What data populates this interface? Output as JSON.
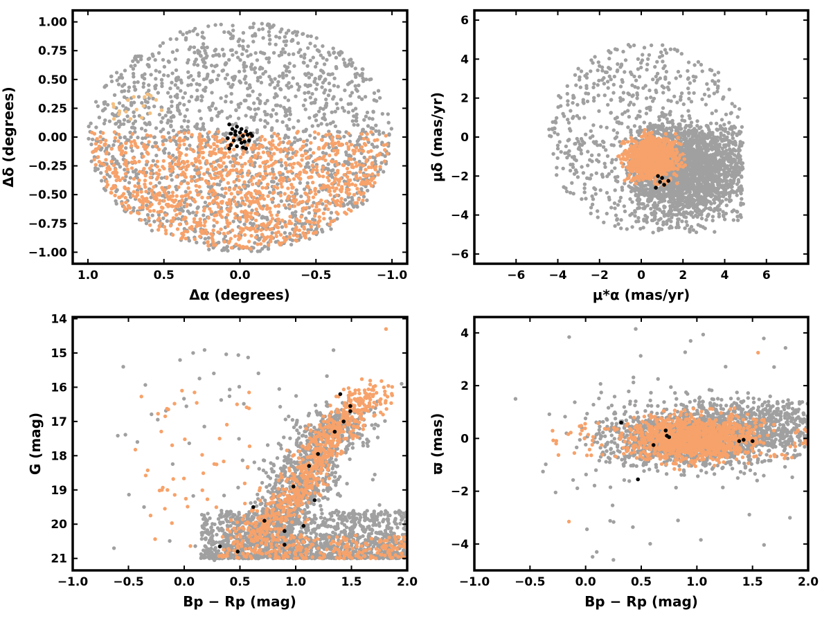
{
  "colors": {
    "field": "#a0a0a0",
    "candidate": "#f7a26a",
    "candidate_light": "#f5c080",
    "member": "#000000",
    "frame": "#000000"
  },
  "chart_data": [
    {
      "id": "sky",
      "type": "scatter",
      "xlabel": "Δα (degrees)",
      "ylabel": "Δδ (degrees)",
      "xlim": [
        1.1,
        -1.1
      ],
      "ylim": [
        -1.1,
        1.1
      ],
      "xticks": [
        1.0,
        0.5,
        0.0,
        -0.5,
        -1.0
      ],
      "xtick_labels": [
        "1.0",
        "0.5",
        "0.0",
        "−0.5",
        "−1.0"
      ],
      "yticks": [
        -1.0,
        -0.75,
        -0.5,
        -0.25,
        0.0,
        0.25,
        0.5,
        0.75,
        1.0
      ],
      "ytick_labels": [
        "−1.00",
        "−0.75",
        "−0.50",
        "−0.25",
        "0.00",
        "0.25",
        "0.50",
        "0.75",
        "1.00"
      ],
      "grid": false,
      "series": [
        {
          "role": "field",
          "color": "#a0a0a0",
          "distribution": "disk",
          "center": [
            0,
            0
          ],
          "radius": [
            1.0,
            1.0
          ],
          "count": 1700,
          "seed": 11
        },
        {
          "role": "candidate",
          "color": "#f7a26a",
          "distribution": "disk-lower",
          "center": [
            0,
            0
          ],
          "radius": [
            0.98,
            0.98
          ],
          "yrange": [
            -1.0,
            0.05
          ],
          "count": 1150,
          "seed": 23
        },
        {
          "role": "candidate",
          "color": "#f5c080",
          "distribution": "box",
          "xrange": [
            0.5,
            0.85
          ],
          "yrange": [
            0.15,
            0.38
          ],
          "count": 18,
          "seed": 29
        },
        {
          "role": "member",
          "color": "#000000",
          "points": [
            [
              0.07,
              0.11
            ],
            [
              0.05,
              0.07
            ],
            [
              0.02,
              0.09
            ],
            [
              -0.01,
              0.07
            ],
            [
              -0.04,
              0.05
            ],
            [
              -0.07,
              0.03
            ],
            [
              0.06,
              0.03
            ],
            [
              0.03,
              0.02
            ],
            [
              -0.02,
              0.01
            ],
            [
              -0.05,
              0.02
            ],
            [
              0.08,
              -0.01
            ],
            [
              0.04,
              -0.03
            ],
            [
              0.0,
              -0.02
            ],
            [
              -0.03,
              -0.04
            ],
            [
              -0.06,
              -0.03
            ],
            [
              0.06,
              -0.07
            ],
            [
              0.02,
              -0.08
            ],
            [
              -0.02,
              -0.09
            ],
            [
              -0.04,
              -0.1
            ],
            [
              0.07,
              -0.1
            ],
            [
              -0.01,
              -0.05
            ],
            [
              0.03,
              0.05
            ],
            [
              -0.08,
              0.01
            ],
            [
              0.0,
              0.04
            ]
          ]
        }
      ]
    },
    {
      "id": "proper-motion",
      "type": "scatter",
      "xlabel": "μ*α (mas/yr)",
      "ylabel": "μδ (mas/yr)",
      "xlim": [
        -8,
        8
      ],
      "ylim": [
        -6.5,
        6.5
      ],
      "xticks": [
        -6,
        -4,
        -2,
        0,
        2,
        4,
        6
      ],
      "xtick_labels": [
        "−6",
        "−4",
        "−2",
        "0",
        "2",
        "4",
        "6"
      ],
      "yticks": [
        -6,
        -4,
        -2,
        0,
        2,
        4,
        6
      ],
      "ytick_labels": [
        "−6",
        "−4",
        "−2",
        "0",
        "2",
        "4",
        "6"
      ],
      "grid": false,
      "series": [
        {
          "role": "field",
          "color": "#a0a0a0",
          "distribution": "disk",
          "center": [
            0.25,
            0.0
          ],
          "radius": [
            4.7,
            4.9
          ],
          "count": 700,
          "seed": 31
        },
        {
          "role": "field",
          "color": "#a0a0a0",
          "distribution": "gauss",
          "center": [
            2.0,
            -1.6
          ],
          "sigma": [
            1.5,
            1.3
          ],
          "clip": [
            [
              -0.6,
              4.9
            ],
            [
              -4.9,
              0.6
            ]
          ],
          "count": 2200,
          "seed": 37
        },
        {
          "role": "candidate",
          "color": "#f7a26a",
          "distribution": "gauss",
          "center": [
            0.5,
            -1.1
          ],
          "sigma": [
            0.6,
            0.55
          ],
          "clip": [
            [
              -1.2,
              2.2
            ],
            [
              -2.5,
              0.4
            ]
          ],
          "count": 900,
          "seed": 41
        },
        {
          "role": "member",
          "color": "#000000",
          "points": [
            [
              0.7,
              -2.6
            ],
            [
              0.9,
              -2.3
            ],
            [
              1.1,
              -2.45
            ],
            [
              1.3,
              -2.25
            ],
            [
              1.0,
              -2.1
            ],
            [
              0.8,
              -2.0
            ]
          ]
        }
      ]
    },
    {
      "id": "cmd",
      "type": "scatter",
      "xlabel": "Bp − Rp (mag)",
      "ylabel": "G (mag)",
      "xlim": [
        -1.0,
        2.0
      ],
      "ylim": [
        21.35,
        13.95
      ],
      "xticks": [
        -1.0,
        -0.5,
        0.0,
        0.5,
        1.0,
        1.5,
        2.0
      ],
      "xtick_labels": [
        "−1.0",
        "−0.5",
        "0.0",
        "0.5",
        "1.0",
        "1.5",
        "2.0"
      ],
      "yticks": [
        14,
        15,
        16,
        17,
        18,
        19,
        20,
        21
      ],
      "ytick_labels": [
        "14",
        "15",
        "16",
        "17",
        "18",
        "19",
        "20",
        "21"
      ],
      "grid": false,
      "series": [
        {
          "role": "field",
          "color": "#a0a0a0",
          "distribution": "band-top",
          "xrange": [
            0.15,
            2.0
          ],
          "yrange": [
            19.6,
            21.0
          ],
          "count": 1400,
          "seed": 51
        },
        {
          "role": "field",
          "color": "#a0a0a0",
          "distribution": "sequence",
          "path": [
            [
              0.55,
              20.6
            ],
            [
              0.95,
              19.3
            ],
            [
              1.1,
              18.4
            ],
            [
              1.25,
              17.5
            ],
            [
              1.45,
              16.8
            ]
          ],
          "spread": [
            0.18,
            0.4
          ],
          "count": 900,
          "seed": 53
        },
        {
          "role": "field",
          "color": "#a0a0a0",
          "distribution": "box",
          "xrange": [
            -0.6,
            1.9
          ],
          "yrange": [
            14.9,
            21.0
          ],
          "count": 60,
          "seed": 57
        },
        {
          "role": "candidate",
          "color": "#f7a26a",
          "distribution": "band-top",
          "xrange": [
            0.3,
            2.0
          ],
          "yrange": [
            20.3,
            21.0
          ],
          "count": 260,
          "seed": 61
        },
        {
          "role": "candidate",
          "color": "#f7a26a",
          "distribution": "sequence",
          "path": [
            [
              0.6,
              20.3
            ],
            [
              0.95,
              19.4
            ],
            [
              1.1,
              18.5
            ],
            [
              1.25,
              17.6
            ],
            [
              1.45,
              17.0
            ],
            [
              1.7,
              16.0
            ]
          ],
          "spread": [
            0.1,
            0.35
          ],
          "count": 700,
          "seed": 67
        },
        {
          "role": "candidate",
          "color": "#f7a26a",
          "distribution": "box",
          "xrange": [
            -0.45,
            0.6
          ],
          "yrange": [
            16.1,
            20.9
          ],
          "count": 45,
          "seed": 71
        },
        {
          "role": "member",
          "color": "#000000",
          "points": [
            [
              0.32,
              20.65
            ],
            [
              0.48,
              20.8
            ],
            [
              0.9,
              20.6
            ],
            [
              0.9,
              20.2
            ],
            [
              0.72,
              19.9
            ],
            [
              1.07,
              20.05
            ],
            [
              0.62,
              19.5
            ],
            [
              1.17,
              19.3
            ],
            [
              0.98,
              18.9
            ],
            [
              1.12,
              18.3
            ],
            [
              1.2,
              17.95
            ],
            [
              1.35,
              17.3
            ],
            [
              1.43,
              17.0
            ],
            [
              1.49,
              16.7
            ],
            [
              1.49,
              16.55
            ],
            [
              1.4,
              16.2
            ]
          ]
        },
        {
          "role": "field",
          "color": "#a0a0a0",
          "points": [
            [
              -0.63,
              20.7
            ],
            [
              -0.36,
              19.5
            ],
            [
              -0.42,
              17.6
            ],
            [
              0.08,
              15.0
            ],
            [
              1.95,
              15.9
            ]
          ]
        },
        {
          "role": "candidate",
          "color": "#f7a26a",
          "points": [
            [
              1.81,
              14.3
            ],
            [
              -0.2,
              19.0
            ],
            [
              -0.15,
              19.0
            ],
            [
              -0.02,
              16.1
            ],
            [
              -0.17,
              16.85
            ]
          ]
        }
      ]
    },
    {
      "id": "parallax",
      "type": "scatter",
      "xlabel": "Bp − Rp (mag)",
      "ylabel": "ϖ (mas)",
      "xlim": [
        -1.0,
        2.0
      ],
      "ylim": [
        -5.0,
        4.6
      ],
      "xticks": [
        -1.0,
        -0.5,
        0.0,
        0.5,
        1.0,
        1.5,
        2.0
      ],
      "xtick_labels": [
        "−1.0",
        "−0.5",
        "0.0",
        "0.5",
        "1.0",
        "1.5",
        "2.0"
      ],
      "yticks": [
        -4,
        -2,
        0,
        2,
        4
      ],
      "ytick_labels": [
        "−4",
        "−2",
        "0",
        "2",
        "4"
      ],
      "grid": false,
      "series": [
        {
          "role": "field",
          "color": "#a0a0a0",
          "distribution": "gauss",
          "center": [
            1.0,
            0.1
          ],
          "sigma": [
            0.42,
            0.6
          ],
          "clip": [
            [
              -0.35,
              2.0
            ],
            [
              -3.0,
              3.0
            ]
          ],
          "count": 1500,
          "seed": 81
        },
        {
          "role": "field",
          "color": "#a0a0a0",
          "distribution": "box",
          "xrange": [
            1.3,
            2.0
          ],
          "yrange": [
            -0.3,
            1.4
          ],
          "count": 300,
          "seed": 83
        },
        {
          "role": "field",
          "color": "#a0a0a0",
          "distribution": "box",
          "xrange": [
            -0.4,
            1.9
          ],
          "yrange": [
            -4.6,
            4.1
          ],
          "count": 60,
          "seed": 87
        },
        {
          "role": "candidate",
          "color": "#f7a26a",
          "distribution": "gauss",
          "center": [
            0.97,
            0.0
          ],
          "sigma": [
            0.28,
            0.42
          ],
          "clip": [
            [
              0.35,
              1.7
            ],
            [
              -1.2,
              1.2
            ]
          ],
          "count": 1000,
          "seed": 91
        },
        {
          "role": "candidate",
          "color": "#f7a26a",
          "distribution": "box",
          "xrange": [
            -0.3,
            2.0
          ],
          "yrange": [
            -0.8,
            0.6
          ],
          "count": 140,
          "seed": 93
        },
        {
          "role": "member",
          "color": "#000000",
          "points": [
            [
              0.32,
              0.6
            ],
            [
              0.61,
              -0.25
            ],
            [
              0.47,
              -1.55
            ],
            [
              0.72,
              0.3
            ],
            [
              0.73,
              0.1
            ],
            [
              0.75,
              0.05
            ],
            [
              1.42,
              -0.05
            ],
            [
              1.5,
              -0.1
            ],
            [
              1.38,
              -0.1
            ]
          ]
        },
        {
          "role": "candidate",
          "color": "#f7a26a",
          "points": [
            [
              -0.15,
              -3.15
            ],
            [
              1.55,
              3.25
            ]
          ]
        },
        {
          "role": "field",
          "color": "#a0a0a0",
          "points": [
            [
              -0.63,
              1.5
            ],
            [
              0.25,
              -4.6
            ],
            [
              0.1,
              -4.3
            ],
            [
              0.45,
              4.15
            ]
          ]
        }
      ]
    }
  ]
}
